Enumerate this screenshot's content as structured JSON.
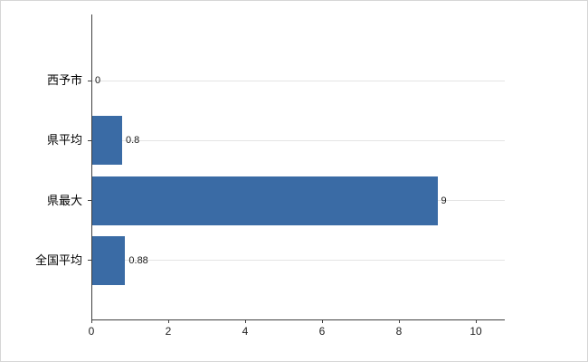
{
  "chart_data": {
    "type": "bar",
    "orientation": "horizontal",
    "title": "",
    "xlabel": "",
    "ylabel": "",
    "categories": [
      "西予市",
      "県平均",
      "県最大",
      "全国平均"
    ],
    "values": [
      0,
      0.8,
      9,
      0.88
    ],
    "value_labels": [
      "0",
      "0.8",
      "9",
      "0.88"
    ],
    "xlim": [
      0,
      10.75
    ],
    "x_ticks": [
      0,
      2,
      4,
      6,
      8,
      10
    ],
    "x_tick_labels": [
      "0",
      "2",
      "4",
      "6",
      "8",
      "10"
    ],
    "legend": null,
    "grid": "horizontal-category-lines",
    "bar_color": "#3a6ba5",
    "axis_color": "#404040",
    "gridline_color": "#e4e4e4",
    "background_color": "#ffffff"
  }
}
